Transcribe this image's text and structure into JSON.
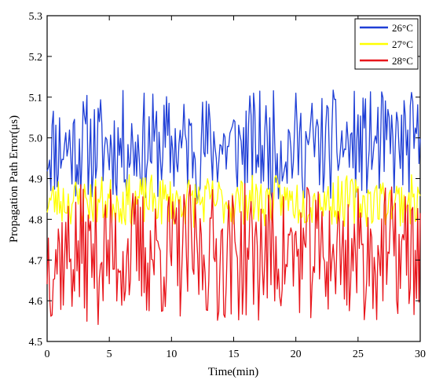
{
  "chart_data": {
    "type": "line",
    "title": "",
    "xlabel": "Time(min)",
    "ylabel": "Propagation Path Error(μs)",
    "xlim": [
      0,
      30
    ],
    "ylim": [
      4.5,
      5.3
    ],
    "xticks": [
      0,
      5,
      10,
      15,
      20,
      25,
      30
    ],
    "yticks": [
      4.5,
      4.6,
      4.7,
      4.8,
      4.9,
      5.0,
      5.1,
      5.2,
      5.3
    ],
    "ytick_labels": [
      "4.5",
      "4.6",
      "4.7",
      "4.8",
      "4.9",
      "5.0",
      "5.1",
      "5.2",
      "5.3"
    ],
    "grid": false,
    "legend_position": "top-right",
    "sampling": {
      "x_start": 0,
      "x_end": 30,
      "points": 301
    },
    "series": [
      {
        "name": "26°C",
        "color": "#1f3fd6",
        "range": [
          4.84,
          5.12
        ],
        "approx_mean": 4.98,
        "seed": 11
      },
      {
        "name": "27°C",
        "color": "#ffff00",
        "range": [
          4.78,
          4.91
        ],
        "approx_mean": 4.85,
        "seed": 23
      },
      {
        "name": "28°C",
        "color": "#e8151b",
        "range": [
          4.54,
          4.89
        ],
        "approx_mean": 4.7,
        "seed": 37
      }
    ]
  }
}
